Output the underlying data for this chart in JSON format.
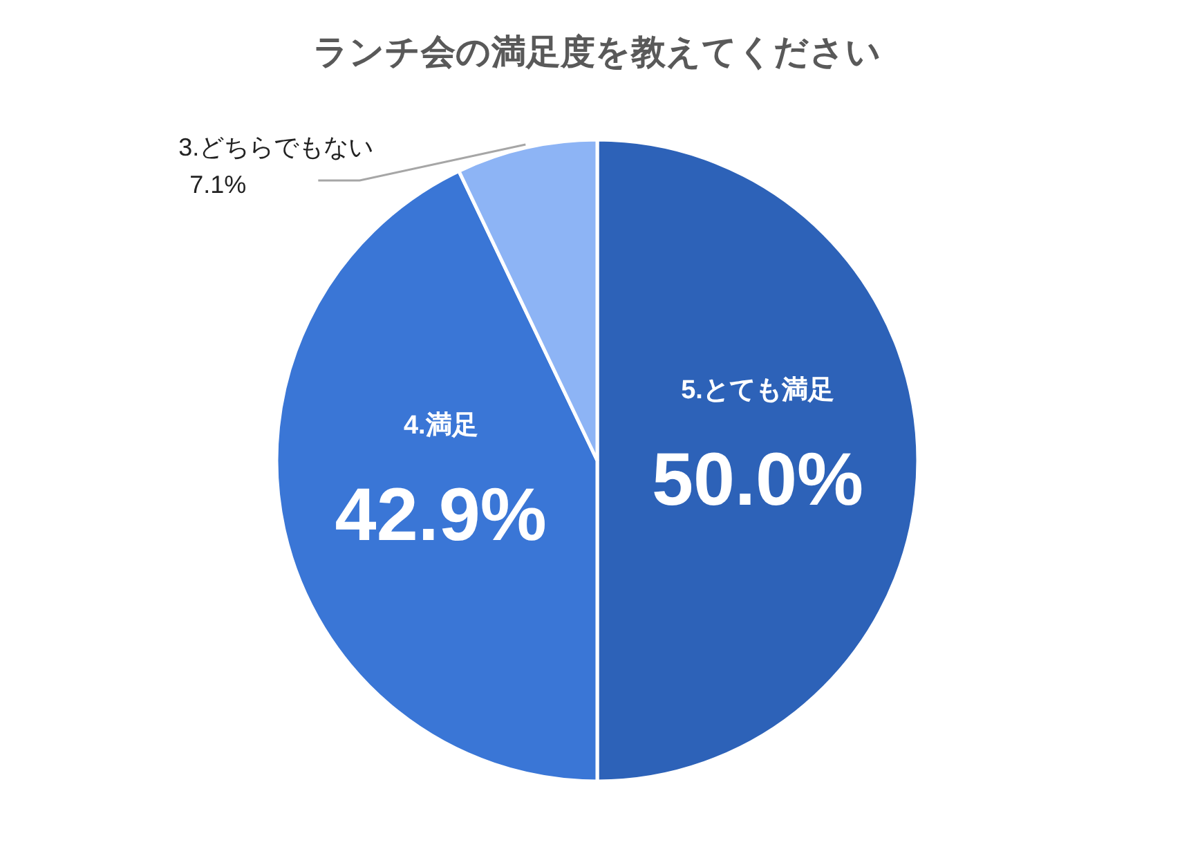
{
  "chart_data": {
    "type": "pie",
    "title": "ランチ会の満足度を教えてください",
    "categories": [
      "5.とても満足",
      "4.満足",
      "3.どちらでもない"
    ],
    "values": [
      50.0,
      42.9,
      7.1
    ],
    "colors": [
      "#2d62b8",
      "#3a76d6",
      "#8db4f5"
    ],
    "value_labels": [
      "50.0%",
      "42.9%",
      "7.1%"
    ]
  }
}
